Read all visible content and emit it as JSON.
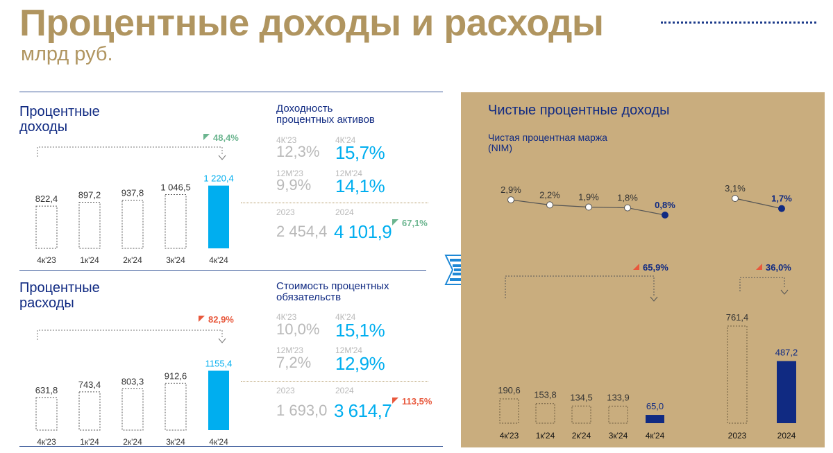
{
  "header": {
    "title": "Процентные доходы и расходы",
    "subtitle": "млрд руб."
  },
  "colors": {
    "gold": "#b09560",
    "navy": "#102a82",
    "cyan": "#00aeef",
    "panel_bg": "#c9ad7e",
    "green": "#6bb58f",
    "red": "#e8583c"
  },
  "income": {
    "title_line1": "Процентные",
    "title_line2": "доходы",
    "growth": "48,4%",
    "metric_title_line1": "Доходность",
    "metric_title_line2": "процентных активов",
    "rows": [
      {
        "old_label": "4К'23",
        "old_value": "12,3%",
        "new_label": "4К'24",
        "new_value": "15,7%"
      },
      {
        "old_label": "12М'23",
        "old_value": "9,9%",
        "new_label": "12М'24",
        "new_value": "14,1%"
      },
      {
        "old_label": "2023",
        "old_value": "2 454,4",
        "new_label": "2024",
        "new_value": "4 101,9",
        "change": "67,1%"
      }
    ]
  },
  "expense": {
    "title_line1": "Процентные",
    "title_line2": "расходы",
    "growth": "82,9%",
    "metric_title_line1": "Стоимость процентных",
    "metric_title_line2": "обязательств",
    "rows": [
      {
        "old_label": "4К'23",
        "old_value": "10,0%",
        "new_label": "4К'24",
        "new_value": "15,1%"
      },
      {
        "old_label": "12М'23",
        "old_value": "7,2%",
        "new_label": "12М'24",
        "new_value": "12,9%"
      },
      {
        "old_label": "2023",
        "old_value": "1 693,0",
        "new_label": "2024",
        "new_value": "3 614,7",
        "change": "113,5%"
      }
    ]
  },
  "net": {
    "title": "Чистые процентные доходы",
    "nim_title_line1": "Чистая процентная маржа",
    "nim_title_line2": "(NIM)",
    "quarter_growth": "65,9%",
    "year_growth": "36,0%"
  },
  "chart_data": [
    {
      "id": "income",
      "type": "bar",
      "title": "Процентные доходы",
      "categories": [
        "4к'23",
        "1к'24",
        "2к'24",
        "3к'24",
        "4к'24"
      ],
      "values": [
        822.4,
        897.2,
        937.8,
        1046.5,
        1220.4
      ],
      "labels": [
        "822,4",
        "897,2",
        "937,8",
        "1 046,5",
        "1 220,4"
      ],
      "highlight_last": true,
      "ylim": [
        0,
        1350
      ]
    },
    {
      "id": "expense",
      "type": "bar",
      "title": "Процентные расходы",
      "categories": [
        "4к'23",
        "1к'24",
        "2к'24",
        "3к'24",
        "4к'24"
      ],
      "values": [
        631.8,
        743.4,
        803.3,
        912.6,
        1155.4
      ],
      "labels": [
        "631,8",
        "743,4",
        "803,3",
        "912,6",
        "1155,4"
      ],
      "highlight_last": true,
      "ylim": [
        0,
        1350
      ]
    },
    {
      "id": "nii_q",
      "type": "bar",
      "title": "Чистые процентные доходы (квартал)",
      "categories": [
        "4к'23",
        "1к'24",
        "2к'24",
        "3к'24",
        "4к'24"
      ],
      "values": [
        190.6,
        153.8,
        134.5,
        133.9,
        65.0
      ],
      "labels": [
        "190,6",
        "153,8",
        "134,5",
        "133,9",
        "65,0"
      ],
      "highlight_last": true,
      "ylim": [
        0,
        800
      ]
    },
    {
      "id": "nii_y",
      "type": "bar",
      "title": "Чистые процентные доходы (год)",
      "categories": [
        "2023",
        "2024"
      ],
      "values": [
        761.4,
        487.2
      ],
      "labels": [
        "761,4",
        "487,2"
      ],
      "highlight_last": true,
      "ylim": [
        0,
        800
      ]
    },
    {
      "id": "nim_q",
      "type": "line",
      "title": "Чистая процентная маржа (NIM), квартал",
      "x": [
        "4к'23",
        "1к'24",
        "2к'24",
        "3к'24",
        "4к'24"
      ],
      "values": [
        2.9,
        2.2,
        1.9,
        1.8,
        0.8
      ],
      "labels": [
        "2,9%",
        "2,2%",
        "1,9%",
        "1,8%",
        "0,8%"
      ]
    },
    {
      "id": "nim_y",
      "type": "line",
      "title": "Чистая процентная маржа (NIM), год",
      "x": [
        "2023",
        "2024"
      ],
      "values": [
        3.1,
        1.7
      ],
      "labels": [
        "3,1%",
        "1,7%"
      ]
    }
  ]
}
